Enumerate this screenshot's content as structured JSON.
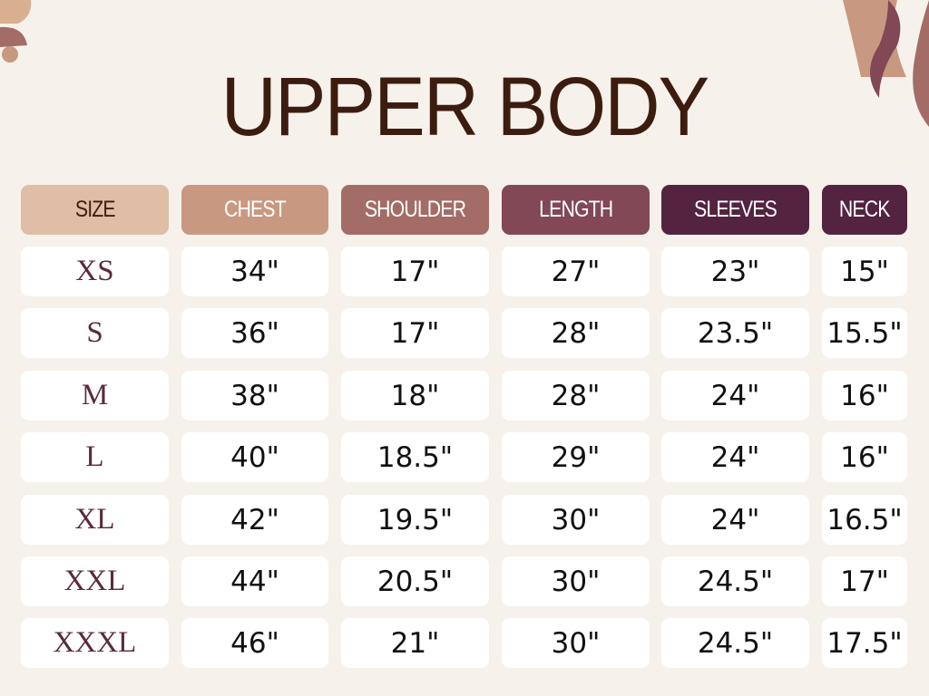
{
  "title": "UPPER BODY",
  "colors": {
    "background": "#f6f1eb",
    "title": "#3d1c10",
    "size_text": "#5a2a40"
  },
  "columns": [
    {
      "label": "SIZE",
      "color": "#dfbda6",
      "text_color": "#3d1c10"
    },
    {
      "label": "CHEST",
      "color": "#c99881",
      "text_color": "#ffffff"
    },
    {
      "label": "SHOULDER",
      "color": "#a46c67",
      "text_color": "#ffffff"
    },
    {
      "label": "LENGTH",
      "color": "#824856",
      "text_color": "#ffffff"
    },
    {
      "label": "SLEEVES",
      "color": "#532340",
      "text_color": "#ffffff"
    },
    {
      "label": "NECK",
      "color": "#532340",
      "text_color": "#ffffff"
    }
  ],
  "rows": [
    [
      "XS",
      "34\"",
      "17\"",
      "27\"",
      "23\"",
      "15\""
    ],
    [
      "S",
      "36\"",
      "17\"",
      "28\"",
      "23.5\"",
      "15.5\""
    ],
    [
      "M",
      "38\"",
      "18\"",
      "28\"",
      "24\"",
      "16\""
    ],
    [
      "L",
      "40\"",
      "18.5\"",
      "29\"",
      "24\"",
      "16\""
    ],
    [
      "XL",
      "42\"",
      "19.5\"",
      "30\"",
      "24\"",
      "16.5\""
    ],
    [
      "XXL",
      "44\"",
      "20.5\"",
      "30\"",
      "24.5\"",
      "17\""
    ],
    [
      "XXXL",
      "46\"",
      "21\"",
      "30\"",
      "24.5\"",
      "17.5\""
    ]
  ]
}
